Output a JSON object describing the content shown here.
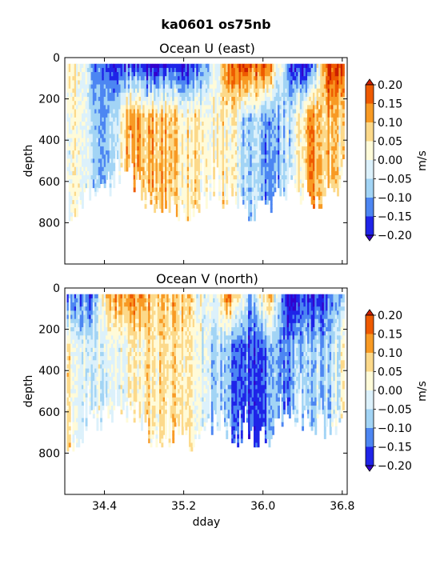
{
  "figure": {
    "suptitle": "ka0601 os75nb",
    "xlabel": "dday"
  },
  "chart_data": [
    {
      "type": "heatmap",
      "title": "Ocean U (east)",
      "xlabel": "",
      "ylabel": "depth",
      "xlim": [
        34.0,
        36.85
      ],
      "ylim": [
        1000,
        0
      ],
      "y_inverted": true,
      "yticks": [
        "0",
        "200",
        "400",
        "600",
        "800"
      ],
      "xticks": [],
      "colorbar": {
        "label": "m/s",
        "levels": [
          "0.20",
          "0.15",
          "0.10",
          "0.05",
          "0.00",
          "−0.05",
          "−0.10",
          "−0.15",
          "−0.20"
        ],
        "colors": [
          "#cc1f00",
          "#ee5a00",
          "#f89a24",
          "#fcd98a",
          "#fffbd9",
          "#dcf1fb",
          "#a2d4f5",
          "#4d86f2",
          "#1f24e8",
          "#3300cc"
        ],
        "extend": "both"
      },
      "data_profile": {
        "dday": [
          34.05,
          34.25,
          34.45,
          34.65,
          34.85,
          35.05,
          35.25,
          35.45,
          35.65,
          35.85,
          36.05,
          36.25,
          36.45,
          36.65,
          36.8
        ],
        "surface_u": [
          0.08,
          -0.1,
          -0.18,
          -0.15,
          -0.22,
          -0.18,
          -0.2,
          -0.1,
          0.18,
          0.2,
          0.15,
          -0.18,
          -0.2,
          0.2,
          0.18
        ],
        "deep_u": [
          0.02,
          -0.05,
          -0.1,
          0.12,
          0.1,
          0.08,
          0.05,
          0.04,
          0.06,
          -0.08,
          -0.12,
          -0.05,
          0.12,
          0.1,
          0.05
        ],
        "max_depth": [
          770,
          620,
          600,
          560,
          690,
          720,
          750,
          640,
          660,
          720,
          700,
          610,
          650,
          670,
          600
        ]
      }
    },
    {
      "type": "heatmap",
      "title": "Ocean V (north)",
      "xlabel": "dday",
      "ylabel": "depth",
      "xlim": [
        34.0,
        36.85
      ],
      "ylim": [
        1000,
        0
      ],
      "y_inverted": true,
      "yticks": [
        "0",
        "200",
        "400",
        "600",
        "800"
      ],
      "xticks": [
        "34.4",
        "35.2",
        "36.0",
        "36.8"
      ],
      "xtick_values": [
        34.4,
        35.2,
        36.0,
        36.8
      ],
      "colorbar": {
        "label": "m/s",
        "levels": [
          "0.20",
          "0.15",
          "0.10",
          "0.05",
          "0.00",
          "−0.05",
          "−0.10",
          "−0.15",
          "−0.20"
        ],
        "colors": [
          "#cc1f00",
          "#ee5a00",
          "#f89a24",
          "#fcd98a",
          "#fffbd9",
          "#dcf1fb",
          "#a2d4f5",
          "#4d86f2",
          "#1f24e8",
          "#3300cc"
        ],
        "extend": "both"
      },
      "data_profile": {
        "dday": [
          34.05,
          34.25,
          34.45,
          34.65,
          34.85,
          35.05,
          35.25,
          35.45,
          35.65,
          35.85,
          36.05,
          36.25,
          36.45,
          36.65,
          36.8
        ],
        "surface_v": [
          -0.12,
          -0.15,
          0.1,
          0.15,
          0.12,
          0.08,
          0.05,
          -0.05,
          0.15,
          -0.1,
          0.1,
          -0.2,
          -0.2,
          -0.15,
          -0.1
        ],
        "deep_v": [
          0.04,
          -0.02,
          0.0,
          0.02,
          0.05,
          0.06,
          0.02,
          -0.05,
          -0.1,
          -0.15,
          -0.12,
          -0.1,
          -0.08,
          -0.06,
          0.0
        ],
        "max_depth": [
          770,
          620,
          600,
          560,
          690,
          720,
          750,
          640,
          660,
          720,
          700,
          610,
          650,
          670,
          600
        ]
      }
    }
  ]
}
